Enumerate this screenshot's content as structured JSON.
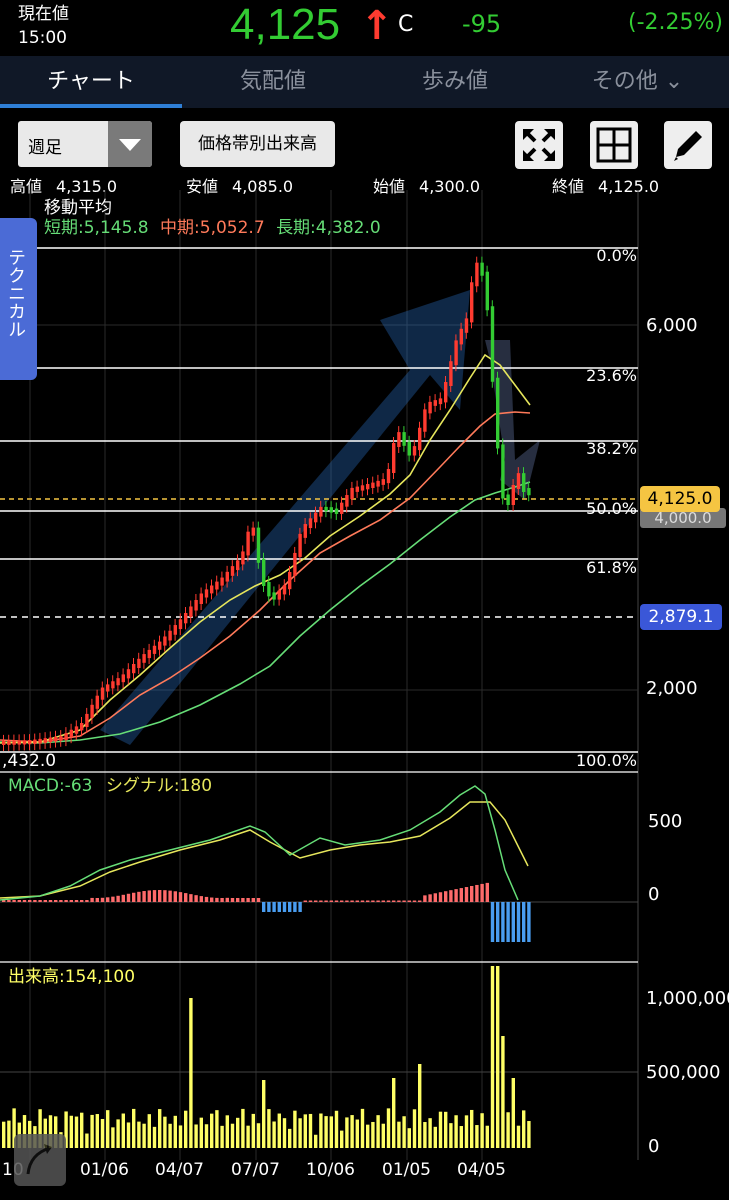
{
  "header": {
    "label": "現在値",
    "time": "15:00",
    "price": "4,125",
    "arrow": "↑",
    "arrow_suffix": "C",
    "change": "-95",
    "change_pct": "(-2.25%)"
  },
  "tabs": [
    {
      "label": "チャート"
    },
    {
      "label": "気配値"
    },
    {
      "label": "歩み値"
    },
    {
      "label": "その他 ⌄"
    }
  ],
  "toolbar": {
    "period": "週足",
    "volume_button": "価格帯別出来高",
    "icons": [
      "expand-icon",
      "grid-icon",
      "pencil-icon"
    ]
  },
  "ohlc": {
    "high_label": "高値",
    "high": "4,315.0",
    "low_label": "安値",
    "low": "4,085.0",
    "open_label": "始値",
    "open": "4,300.0",
    "close_label": "終値",
    "close": "4,125.0"
  },
  "side_tab": "テクニカル",
  "ma": {
    "title": "移動平均",
    "short": "短期:5,145.8",
    "mid": "中期:5,052.7",
    "long": "長期:4,382.0"
  },
  "price_axis": [
    "6,000",
    "2,000"
  ],
  "fib": [
    "0.0%",
    "23.6%",
    "38.2%",
    "50.0%",
    "61.8%",
    "100.0%"
  ],
  "fib_low_label": ",432.0",
  "tags": {
    "current": "4,125.0",
    "line": "2,879.1",
    "hidden": "4,000.0"
  },
  "macd": {
    "macd": "MACD:-63",
    "signal": "シグナル:180",
    "axis": [
      "500",
      "0"
    ]
  },
  "volume": {
    "label": "出来高:154,100",
    "axis": [
      "1,000,000",
      "500,000",
      "0"
    ]
  },
  "dates": [
    "10",
    "01/06",
    "04/07",
    "07/07",
    "10/06",
    "01/05",
    "04/05"
  ],
  "colors": {
    "up": "#33cc33",
    "down": "#ff3b30",
    "short_ma": "#e6e65c",
    "mid_ma": "#ff7a5a",
    "long_ma": "#66dd77",
    "volume": "#ffff66"
  }
}
